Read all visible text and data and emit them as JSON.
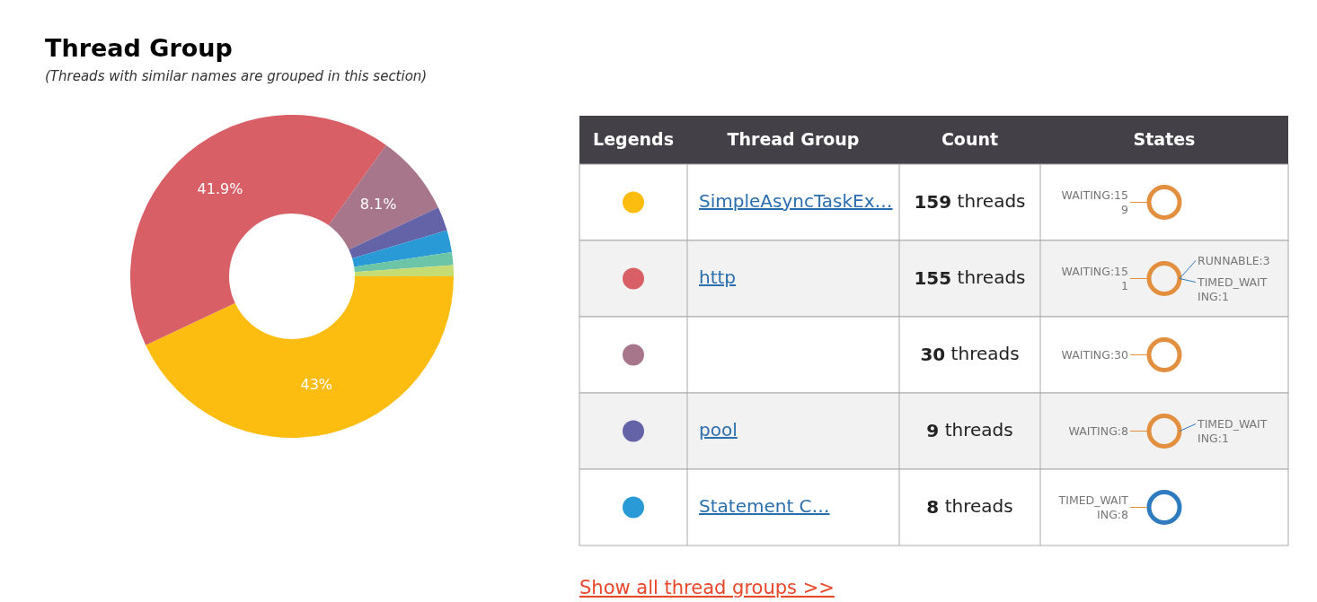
{
  "chart_data": [
    {
      "type": "donut",
      "title": "Thread Group",
      "subtitle": "(Threads with similar names are grouped in this section)",
      "categories": [
        null,
        null,
        null,
        null,
        null,
        null,
        null
      ],
      "values": [
        43,
        41.9,
        8.1,
        2.4,
        2.2,
        1.3,
        1.1
      ],
      "colors": [
        "#fdbd10",
        "#d95f67",
        "#a7768a",
        "#6463a8",
        "#2a9ad6",
        "#6cc5a6",
        "#c5dc72"
      ],
      "value_labels": [
        "43%",
        "41.9%",
        "8.1%",
        null,
        null,
        null,
        null
      ]
    },
    {
      "type": "other",
      "categories": [
        "SimpleAsyncTaskEx…",
        "http",
        null,
        "pool",
        "Statement C…"
      ],
      "values": [
        159,
        155,
        30,
        9,
        8
      ],
      "value_labels": [
        "159 threads",
        "155 threads",
        "30 threads",
        "9 threads",
        "8 threads"
      ],
      "annotations": [
        "Legends",
        "Thread Group",
        "Count",
        "States",
        "WAITING:159",
        "WAITING:151",
        "RUNNABLE:3",
        "TIMED_WAITING:1",
        "WAITING:30",
        "WAITING:8",
        "TIMED_WAITING:1",
        "TIMED_WAITING:8",
        "Show all thread groups >>"
      ]
    }
  ]
}
